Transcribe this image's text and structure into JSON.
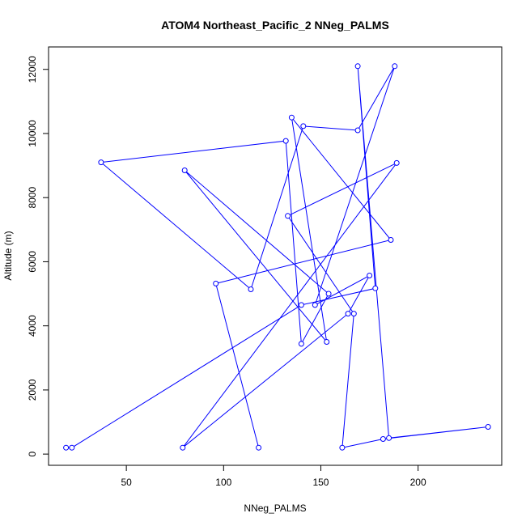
{
  "chart_data": {
    "type": "line",
    "title": "ATOM4 Northeast_Pacific_2 NNeg_PALMS",
    "xlabel": "NNeg_PALMS",
    "ylabel": "Altitude (m)",
    "xlim": [
      10,
      243
    ],
    "ylim": [
      -350,
      12700
    ],
    "x_ticks": [
      50,
      100,
      150,
      200
    ],
    "y_ticks": [
      0,
      2000,
      4000,
      6000,
      8000,
      10000,
      12000
    ],
    "color": "#0000ff",
    "markers": "open-circle",
    "series": [
      {
        "x": [
          19,
          22,
          140,
          178,
          169,
          185,
          236,
          182,
          161,
          167,
          133,
          189,
          79,
          164,
          175,
          147,
          188,
          169,
          141,
          114,
          37,
          132,
          140,
          154,
          80,
          153,
          135,
          186,
          96,
          118
        ],
        "y": [
          200,
          200,
          4650,
          5170,
          12100,
          500,
          850,
          470,
          200,
          4380,
          7430,
          9080,
          200,
          4380,
          5570,
          4650,
          12100,
          10100,
          10230,
          5140,
          9100,
          9770,
          3440,
          5000,
          8850,
          3500,
          10500,
          6680,
          5320,
          200
        ]
      }
    ]
  }
}
